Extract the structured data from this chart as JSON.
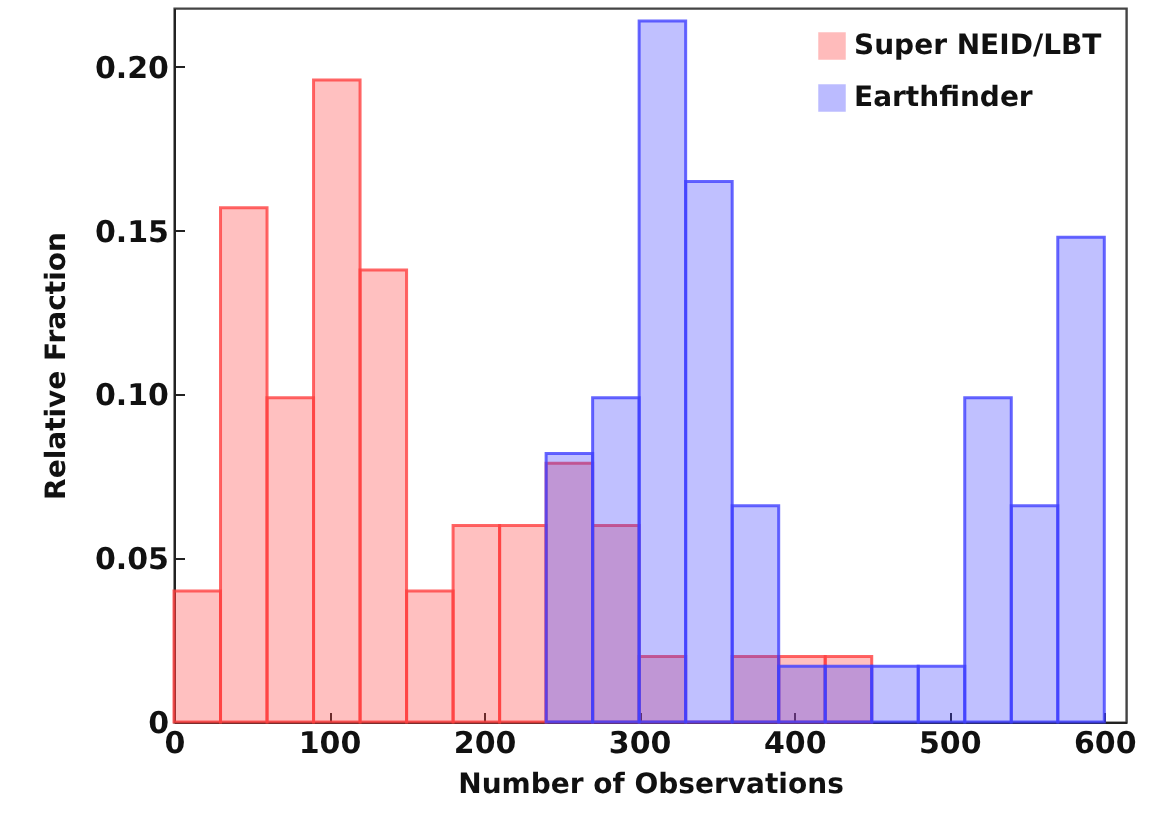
{
  "chart_data": {
    "type": "histogram",
    "xlabel": "Number of Observations",
    "ylabel": "Relative Fraction",
    "bins": [
      0,
      30,
      60,
      90,
      120,
      150,
      180,
      210,
      240,
      270,
      300,
      330,
      360,
      390,
      420,
      450,
      480,
      510,
      540,
      570,
      600
    ],
    "series": [
      {
        "name": "Super NEID/LBT",
        "color": "#ff4040",
        "values": [
          0.04,
          0.157,
          0.099,
          0.196,
          0.138,
          0.04,
          0.06,
          0.06,
          0.079,
          0.06,
          0.02,
          0,
          0.02,
          0.02,
          0.02,
          null,
          null,
          null,
          null,
          null
        ]
      },
      {
        "name": "Earthfinder",
        "color": "#4040ff",
        "values": [
          null,
          null,
          null,
          null,
          null,
          null,
          null,
          null,
          0.082,
          0.099,
          0.214,
          0.165,
          0.066,
          0.017,
          0.017,
          0.017,
          0.017,
          0.099,
          0.066,
          0.148
        ]
      }
    ],
    "xlim": [
      0,
      614
    ],
    "ylim": [
      0,
      0.218
    ],
    "xticks": [
      0,
      100,
      200,
      300,
      400,
      500,
      600
    ],
    "yticks": [
      0,
      {
        "value": 0.05,
        "label": "0.05"
      },
      {
        "value": 0.1,
        "label": "0.10"
      },
      {
        "value": 0.15,
        "label": "0.15"
      },
      {
        "value": 0.2,
        "label": "0.20"
      }
    ],
    "legend": "top right",
    "grid": false
  }
}
